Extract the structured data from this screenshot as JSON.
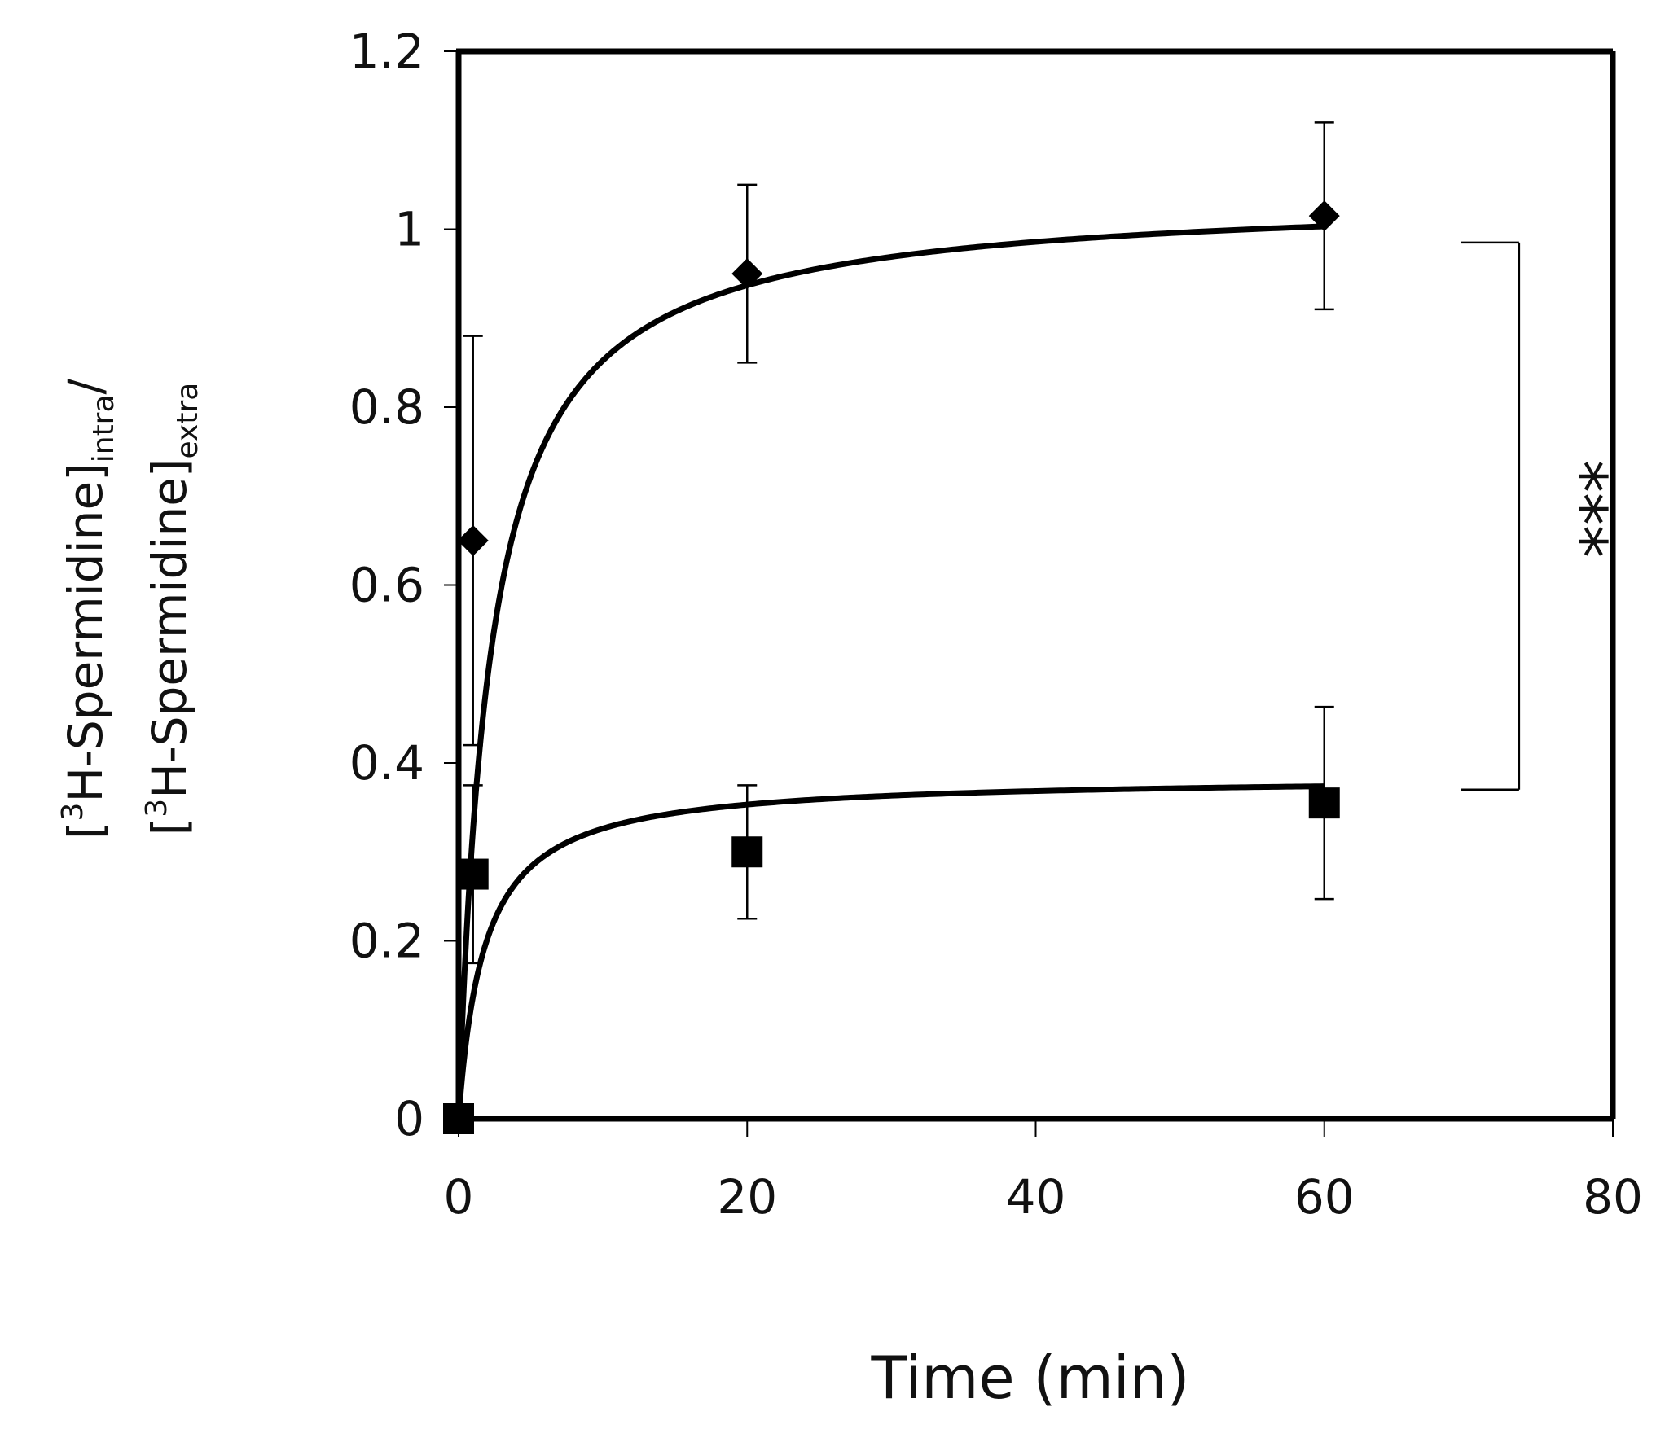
{
  "chart_data": {
    "type": "scatter",
    "title": "",
    "xlabel": "Time (min)",
    "ylabel": {
      "line1": {
        "pre": "[",
        "sup": "3",
        "main": "H-Spermidine]",
        "sub": "intra",
        "post": "/"
      },
      "line2": {
        "pre": "[",
        "sup": "3",
        "main": "H-Spermidine]",
        "sub": "extra",
        "post": ""
      }
    },
    "xlim": [
      0,
      80
    ],
    "ylim": [
      0,
      1.2
    ],
    "xticks": [
      0,
      20,
      40,
      60,
      80
    ],
    "xtick_labels": [
      "0",
      "20",
      "40",
      "60",
      "80"
    ],
    "yticks": [
      0,
      0.2,
      0.4,
      0.6,
      0.8,
      1.0,
      1.2
    ],
    "ytick_labels": [
      "0",
      "0.2",
      "0.4",
      "0.6",
      "0.8",
      "1",
      "1.2"
    ],
    "grid": false,
    "series": [
      {
        "name": "diamond series",
        "marker": "diamond",
        "points": [
          {
            "x": 0,
            "y": 0,
            "err": 0
          },
          {
            "x": 1,
            "y": 0.65,
            "err": 0.23
          },
          {
            "x": 20,
            "y": 0.95,
            "err": 0.1
          },
          {
            "x": 60,
            "y": 1.015,
            "err": 0.105
          }
        ],
        "fit": {
          "vmax": 1.04,
          "k": 2.2
        }
      },
      {
        "name": "square series",
        "marker": "square",
        "points": [
          {
            "x": 0,
            "y": 0,
            "err": 0
          },
          {
            "x": 1,
            "y": 0.275,
            "err": 0.1
          },
          {
            "x": 20,
            "y": 0.3,
            "err": 0.075
          },
          {
            "x": 60,
            "y": 0.355,
            "err": 0.108
          }
        ],
        "fit": {
          "vmax": 0.385,
          "k": 1.8
        }
      }
    ],
    "significance": {
      "label": "***",
      "from_y": 0.37,
      "to_y": 0.985,
      "x": 72
    }
  },
  "colors": {
    "ink": "#000000",
    "background": "#ffffff"
  }
}
